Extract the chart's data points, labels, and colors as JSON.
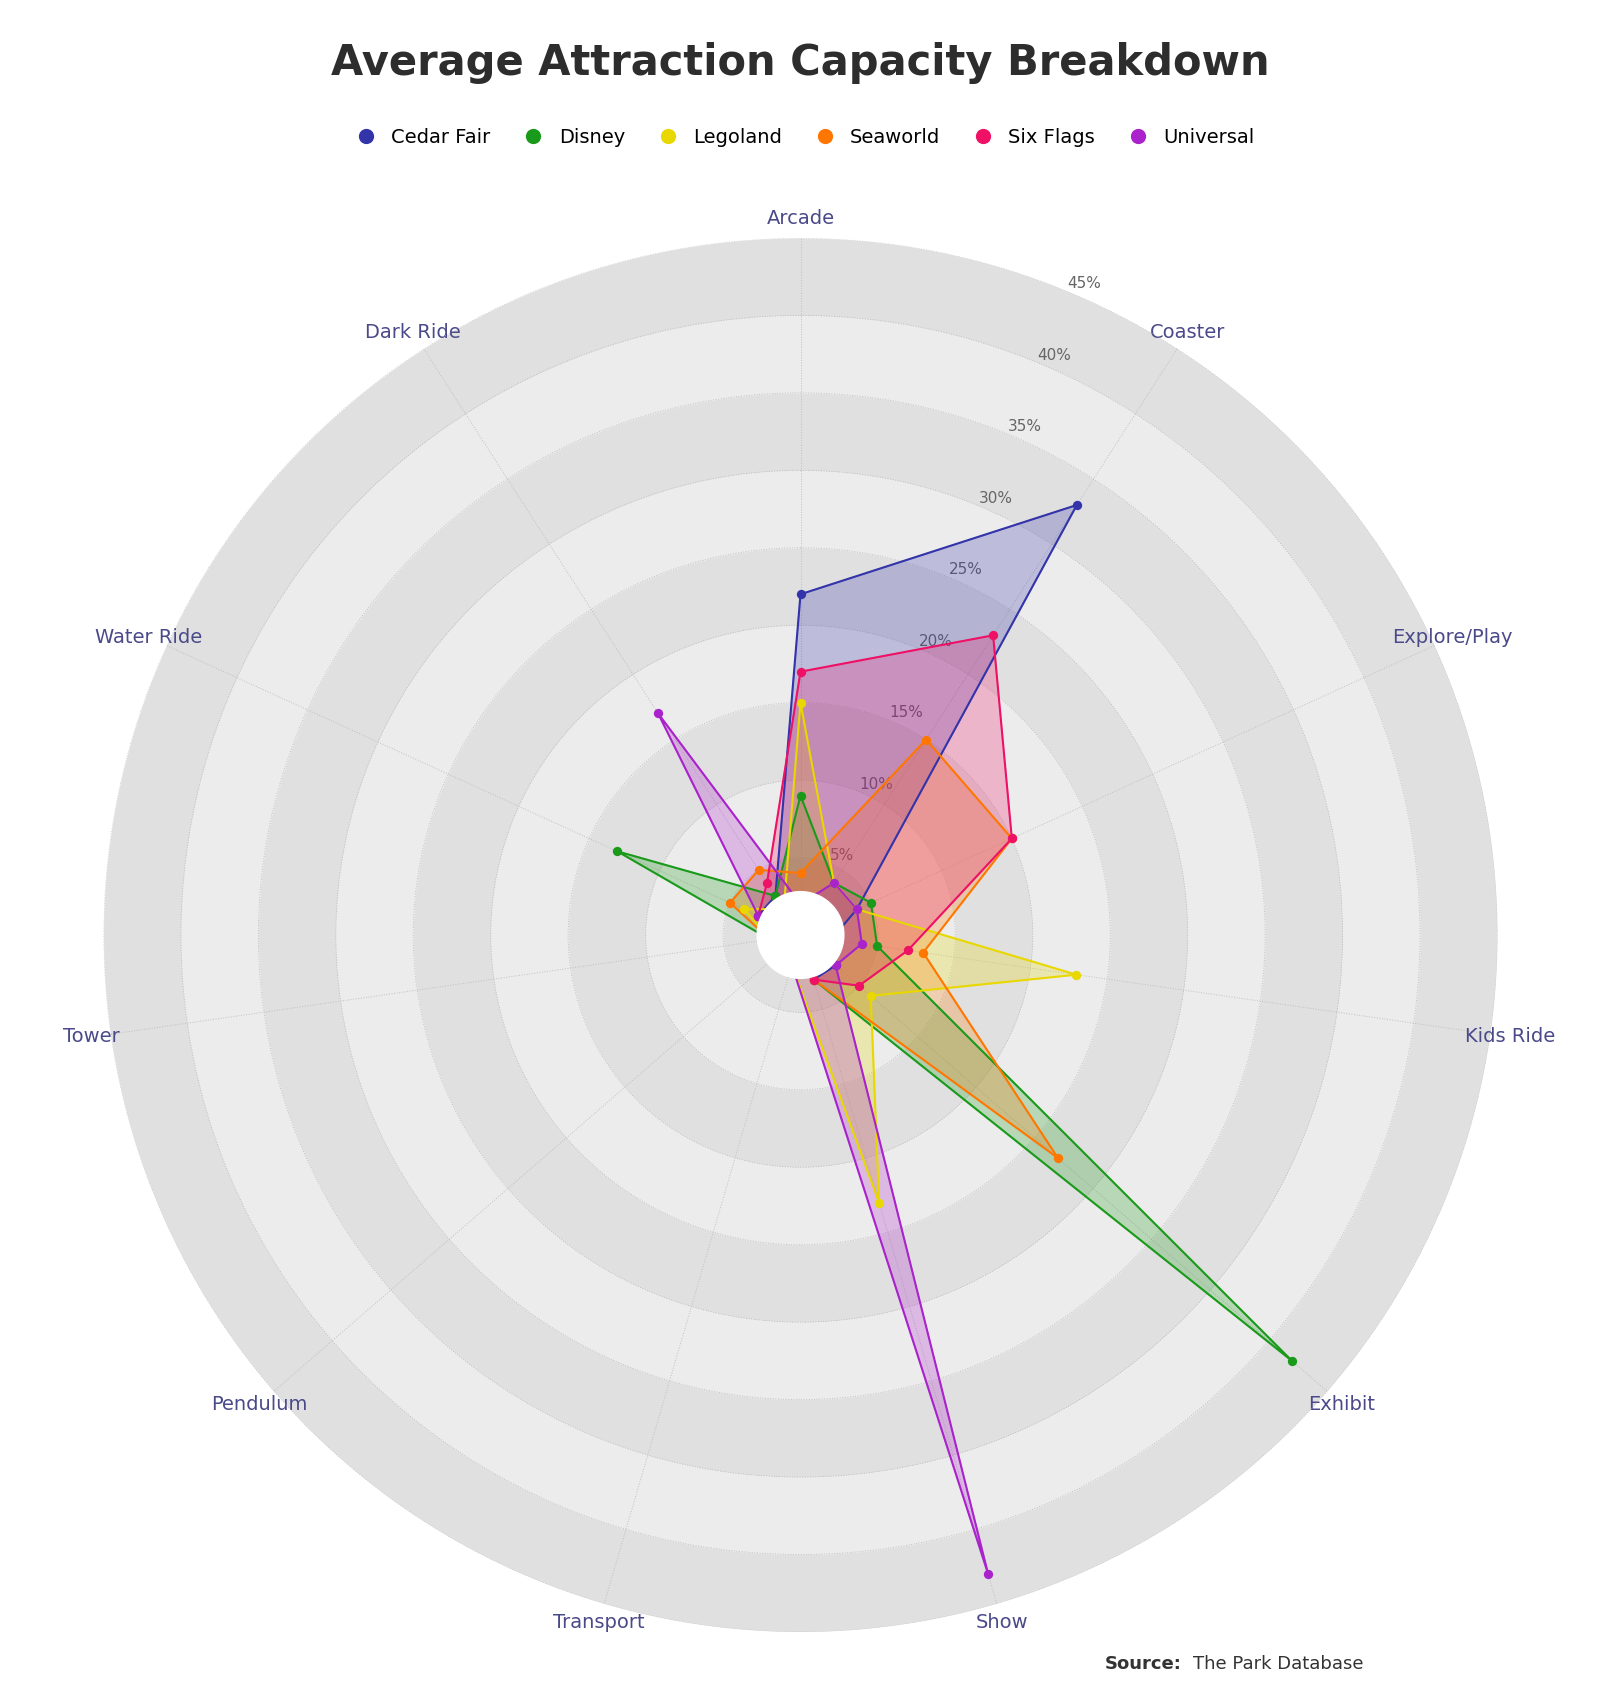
{
  "title": "Average Attraction Capacity Breakdown",
  "categories": [
    "Arcade",
    "Coaster",
    "Explore/Play",
    "Kids Ride",
    "Exhibit",
    "Show",
    "Transport",
    "Pendulum",
    "Tower",
    "Water Ride",
    "Dark Ride"
  ],
  "series_order": [
    "Cedar Fair",
    "Disney",
    "Legoland",
    "Seaworld",
    "Six Flags",
    "Universal"
  ],
  "series": {
    "Cedar Fair": {
      "color": "#3333aa",
      "values": [
        22,
        33,
        4,
        2,
        3,
        3,
        2,
        2,
        2,
        3,
        3
      ]
    },
    "Disney": {
      "color": "#1a9a1a",
      "values": [
        9,
        4,
        5,
        5,
        42,
        3,
        2,
        2,
        2,
        13,
        3
      ]
    },
    "Legoland": {
      "color": "#e8d800",
      "values": [
        15,
        4,
        4,
        18,
        6,
        18,
        2,
        2,
        2,
        4,
        2
      ]
    },
    "Seaworld": {
      "color": "#ff7700",
      "values": [
        4,
        15,
        15,
        8,
        22,
        3,
        2,
        2,
        2,
        5,
        5
      ]
    },
    "Six Flags": {
      "color": "#ee1166",
      "values": [
        17,
        23,
        15,
        7,
        5,
        3,
        2,
        2,
        2,
        3,
        4
      ]
    },
    "Universal": {
      "color": "#aa22cc",
      "values": [
        2,
        4,
        4,
        4,
        3,
        43,
        2,
        2,
        2,
        3,
        17
      ]
    }
  },
  "r_max": 45,
  "r_ticks": [
    5,
    10,
    15,
    20,
    25,
    30,
    35,
    40,
    45
  ],
  "ring_colors": [
    "#e0e0e0",
    "#ececec",
    "#e0e0e0",
    "#ececec",
    "#e0e0e0",
    "#ececec",
    "#e0e0e0",
    "#ececec",
    "#e0e0e0"
  ],
  "source_label": "Source:",
  "source_text": "The Park Database",
  "title_fontsize": 30,
  "label_fontsize": 14,
  "tick_fontsize": 11,
  "legend_fontsize": 14,
  "source_fontsize": 13
}
